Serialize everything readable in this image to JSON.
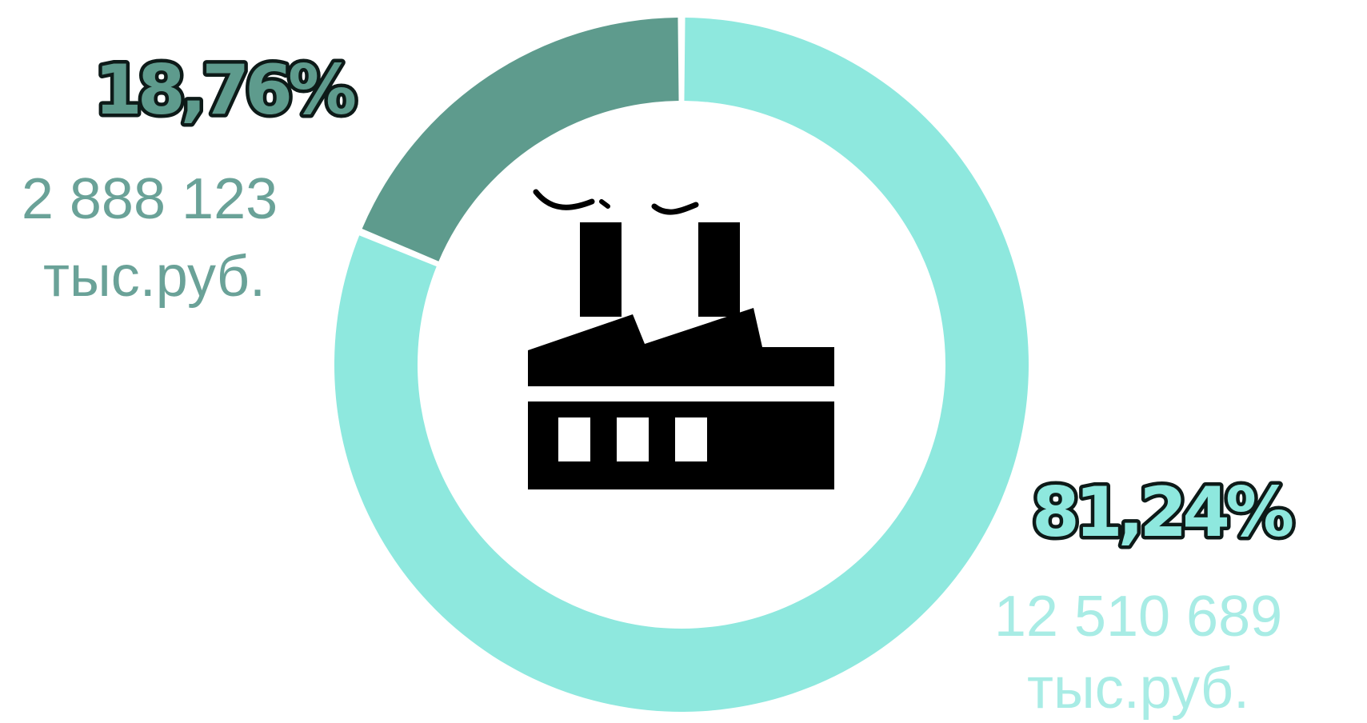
{
  "chart_data": {
    "type": "pie",
    "donut": true,
    "slices": [
      {
        "percent_label": "18,76%",
        "value": 18.76,
        "amount": "2 888 123",
        "unit": "тыс.руб.",
        "color": "#5e9b8d"
      },
      {
        "percent_label": "81,24%",
        "value": 81.24,
        "amount": "12 510 689",
        "unit": "тыс.руб.",
        "color": "#8ee8de"
      }
    ],
    "center_icon": "factory-icon",
    "label_colors": {
      "small_amount": "#6aa298",
      "large_amount": "#a8ece5"
    }
  }
}
